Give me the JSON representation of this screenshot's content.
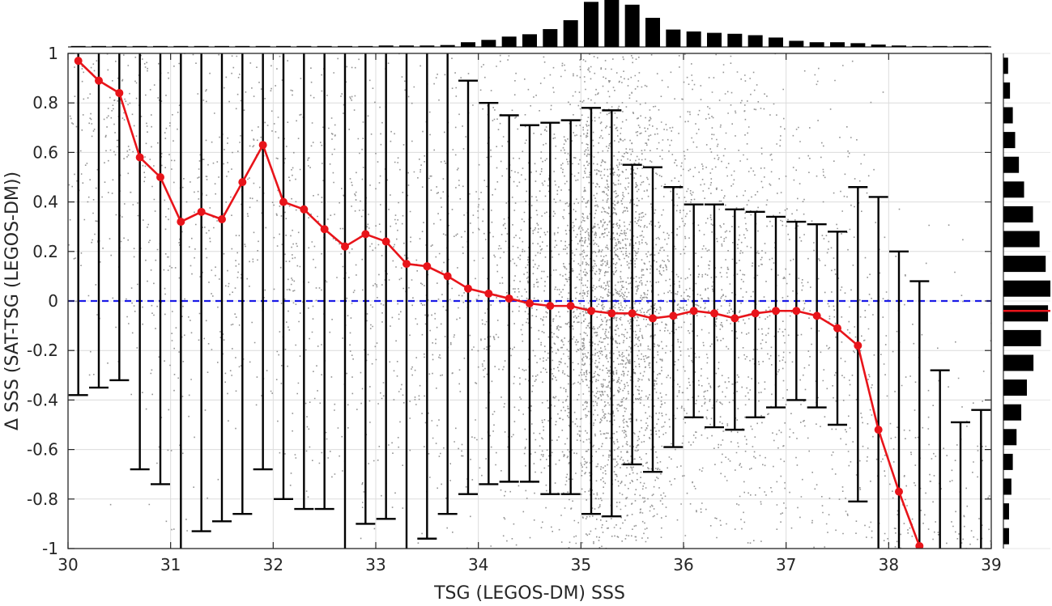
{
  "chart_data": {
    "type": "line",
    "title": "",
    "xlabel": "TSG (LEGOS-DM) SSS",
    "ylabel": "Δ SSS (SAT-TSG (LEGOS-DM))",
    "xlim": [
      30,
      39
    ],
    "ylim": [
      -1,
      1
    ],
    "xticks": [
      "30",
      "31",
      "32",
      "33",
      "34",
      "35",
      "36",
      "37",
      "38",
      "39"
    ],
    "yticks": [
      "-1",
      "-0.8",
      "-0.6",
      "-0.4",
      "-0.2",
      "0",
      "0.2",
      "0.4",
      "0.6",
      "0.8",
      "1"
    ],
    "grid": true,
    "reference_line": {
      "y": 0,
      "style": "dashed",
      "color": "#1a1ae6"
    },
    "colors": {
      "mean": "#e8141a",
      "errorbar": "#000000",
      "scatter": "#808080",
      "histogram": "#000000",
      "hist_mean_marker": "#e8141a"
    },
    "x": [
      30.1,
      30.3,
      30.5,
      30.7,
      30.9,
      31.1,
      31.3,
      31.5,
      31.7,
      31.9,
      32.1,
      32.3,
      32.5,
      32.7,
      32.9,
      33.1,
      33.3,
      33.5,
      33.7,
      33.9,
      34.1,
      34.3,
      34.5,
      34.7,
      34.9,
      35.1,
      35.3,
      35.5,
      35.7,
      35.9,
      36.1,
      36.3,
      36.5,
      36.7,
      36.9,
      37.1,
      37.3,
      37.5,
      37.7,
      37.9,
      38.1,
      38.3,
      38.5,
      38.7,
      38.9
    ],
    "series": [
      {
        "mean": [
          0.97,
          0.89,
          0.84,
          0.58,
          0.5,
          0.32,
          0.36,
          0.33,
          0.48,
          0.63,
          0.4,
          0.37,
          0.29,
          0.22,
          0.27,
          0.24,
          0.15,
          0.14,
          0.1,
          0.05,
          0.03,
          0.01,
          -0.01,
          -0.02,
          -0.02,
          -0.04,
          -0.05,
          -0.05,
          -0.07,
          -0.06,
          -0.04,
          -0.05,
          -0.07,
          -0.05,
          -0.04,
          -0.04,
          -0.06,
          -0.11,
          -0.18,
          -0.52,
          -0.77,
          -0.99,
          null,
          null,
          null
        ],
        "upper": [
          1.0,
          1.0,
          1.0,
          1.0,
          1.0,
          1.0,
          1.0,
          1.0,
          1.0,
          1.0,
          1.0,
          1.0,
          1.0,
          1.0,
          1.0,
          1.0,
          1.0,
          1.0,
          1.0,
          0.89,
          0.8,
          0.75,
          0.71,
          0.72,
          0.73,
          0.78,
          0.77,
          0.55,
          0.54,
          0.46,
          0.39,
          0.39,
          0.37,
          0.36,
          0.34,
          0.32,
          0.31,
          0.28,
          0.46,
          0.42,
          0.2,
          0.08,
          -0.28,
          -0.49,
          -0.44
        ],
        "lower": [
          -0.38,
          -0.35,
          -0.32,
          -0.68,
          -0.74,
          -1.0,
          -0.93,
          -0.89,
          -0.86,
          -0.68,
          -0.8,
          -0.84,
          -0.84,
          -1.0,
          -0.9,
          -0.88,
          -1.0,
          -0.96,
          -0.86,
          -0.78,
          -0.74,
          -0.73,
          -0.73,
          -0.78,
          -0.78,
          -0.86,
          -0.87,
          -0.66,
          -0.69,
          -0.59,
          -0.47,
          -0.51,
          -0.52,
          -0.47,
          -0.43,
          -0.4,
          -0.43,
          -0.5,
          -0.81,
          -1.0,
          -1.0,
          -1.0,
          -1.0,
          -1.0,
          -1.0
        ]
      }
    ],
    "top_histogram": {
      "x": [
        30.1,
        30.3,
        30.5,
        30.7,
        30.9,
        31.1,
        31.3,
        31.5,
        31.7,
        31.9,
        32.1,
        32.3,
        32.5,
        32.7,
        32.9,
        33.1,
        33.3,
        33.5,
        33.7,
        33.9,
        34.1,
        34.3,
        34.5,
        34.7,
        34.9,
        35.1,
        35.3,
        35.5,
        35.7,
        35.9,
        36.1,
        36.3,
        36.5,
        36.7,
        36.9,
        37.1,
        37.3,
        37.5,
        37.7,
        37.9,
        38.1,
        38.3,
        38.5,
        38.7,
        38.9
      ],
      "values": [
        0.02,
        0.02,
        0.02,
        0.02,
        0.02,
        0.02,
        0.02,
        0.02,
        0.02,
        0.02,
        0.02,
        0.02,
        0.02,
        0.02,
        0.02,
        0.03,
        0.03,
        0.03,
        0.04,
        0.1,
        0.15,
        0.22,
        0.27,
        0.38,
        0.57,
        0.96,
        1.0,
        0.9,
        0.62,
        0.37,
        0.33,
        0.3,
        0.28,
        0.25,
        0.2,
        0.13,
        0.1,
        0.1,
        0.08,
        0.05,
        0.03,
        0.02,
        0.02,
        0.02,
        0.02
      ]
    },
    "right_histogram": {
      "y": [
        -0.95,
        -0.85,
        -0.75,
        -0.65,
        -0.55,
        -0.45,
        -0.35,
        -0.25,
        -0.15,
        -0.05,
        0.05,
        0.15,
        0.25,
        0.35,
        0.45,
        0.55,
        0.65,
        0.75,
        0.85,
        0.95
      ],
      "values": [
        0.12,
        0.12,
        0.17,
        0.2,
        0.28,
        0.38,
        0.5,
        0.64,
        0.8,
        0.95,
        1.0,
        0.9,
        0.77,
        0.63,
        0.44,
        0.33,
        0.25,
        0.2,
        0.14,
        0.1
      ],
      "mean": -0.04
    }
  }
}
